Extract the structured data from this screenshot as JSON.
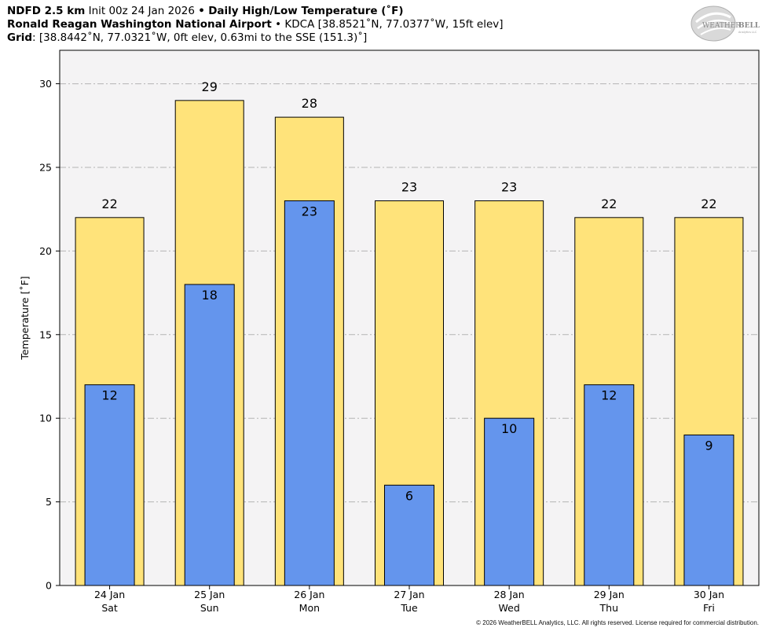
{
  "header": {
    "model": "NDFD 2.5 km",
    "init": "Init 00z 24 Jan 2026",
    "bullet": "•",
    "product": "Daily High/Low Temperature (˚F)",
    "station_name": "Ronald Reagan Washington National Airport",
    "station_detail": "KDCA [38.8521˚N, 77.0377˚W, 15ft elev]",
    "grid_label": "Grid",
    "grid_detail": ": [38.8442˚N, 77.0321˚W, 0ft elev, 0.63mi to the SSE (151.3)˚]"
  },
  "logo": {
    "text_a": "WEATHER",
    "text_b": "BELL",
    "sub": "Analytics LLC"
  },
  "copyright": "© 2026 WeatherBELL Analytics, LLC. All rights reserved. License required for commercial distribution.",
  "colors": {
    "high": "#FFE37A",
    "low": "#6495ED",
    "plot_bg": "#F4F3F4",
    "grid": "#B4B4B4"
  },
  "chart_data": {
    "type": "bar",
    "title": "Daily High/Low Temperature (˚F)",
    "xlabel": "",
    "ylabel": "Temperature [˚F]",
    "ylim": [
      0,
      32
    ],
    "yticks": [
      0,
      5,
      10,
      15,
      20,
      25,
      30
    ],
    "grid": true,
    "categories": [
      {
        "date": "24 Jan",
        "day": "Sat"
      },
      {
        "date": "25 Jan",
        "day": "Sun"
      },
      {
        "date": "26 Jan",
        "day": "Mon"
      },
      {
        "date": "27 Jan",
        "day": "Tue"
      },
      {
        "date": "28 Jan",
        "day": "Wed"
      },
      {
        "date": "29 Jan",
        "day": "Thu"
      },
      {
        "date": "30 Jan",
        "day": "Fri"
      }
    ],
    "series": [
      {
        "name": "High",
        "values": [
          22,
          29,
          28,
          23,
          23,
          22,
          22
        ]
      },
      {
        "name": "Low",
        "values": [
          12,
          18,
          23,
          6,
          10,
          12,
          9
        ]
      }
    ]
  }
}
